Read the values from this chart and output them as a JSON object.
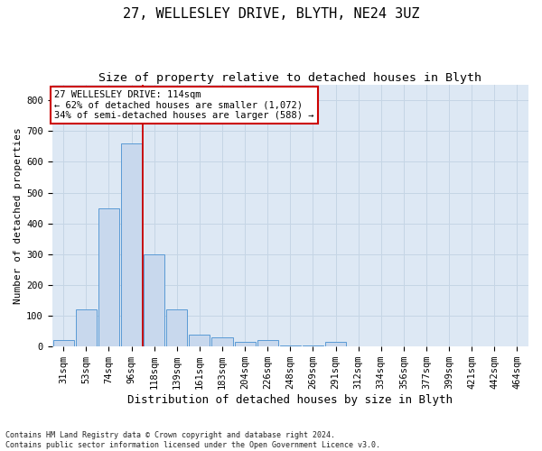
{
  "title": "27, WELLESLEY DRIVE, BLYTH, NE24 3UZ",
  "subtitle": "Size of property relative to detached houses in Blyth",
  "xlabel": "Distribution of detached houses by size in Blyth",
  "ylabel": "Number of detached properties",
  "footnote": "Contains HM Land Registry data © Crown copyright and database right 2024.\nContains public sector information licensed under the Open Government Licence v3.0.",
  "bin_labels": [
    "31sqm",
    "53sqm",
    "74sqm",
    "96sqm",
    "118sqm",
    "139sqm",
    "161sqm",
    "183sqm",
    "204sqm",
    "226sqm",
    "248sqm",
    "269sqm",
    "291sqm",
    "312sqm",
    "334sqm",
    "356sqm",
    "377sqm",
    "399sqm",
    "421sqm",
    "442sqm",
    "464sqm"
  ],
  "bar_heights": [
    20,
    120,
    450,
    660,
    300,
    120,
    40,
    30,
    15,
    20,
    5,
    5,
    15,
    2,
    0,
    0,
    0,
    0,
    0,
    0,
    0
  ],
  "bar_color": "#c8d8ed",
  "bar_edge_color": "#5a9ad5",
  "bar_edge_width": 0.7,
  "vline_color": "#cc0000",
  "annotation_text": "27 WELLESLEY DRIVE: 114sqm\n← 62% of detached houses are smaller (1,072)\n34% of semi-detached houses are larger (588) →",
  "annotation_box_color": "#ffffff",
  "annotation_box_edge": "#cc0000",
  "ylim": [
    0,
    850
  ],
  "yticks": [
    0,
    100,
    200,
    300,
    400,
    500,
    600,
    700,
    800
  ],
  "grid_color": "#c5d5e5",
  "bg_color": "#dde8f4",
  "title_fontsize": 11,
  "subtitle_fontsize": 9.5,
  "ylabel_fontsize": 8,
  "xlabel_fontsize": 9,
  "tick_fontsize": 7.5,
  "annotation_fontsize": 7.5,
  "footnote_fontsize": 6
}
